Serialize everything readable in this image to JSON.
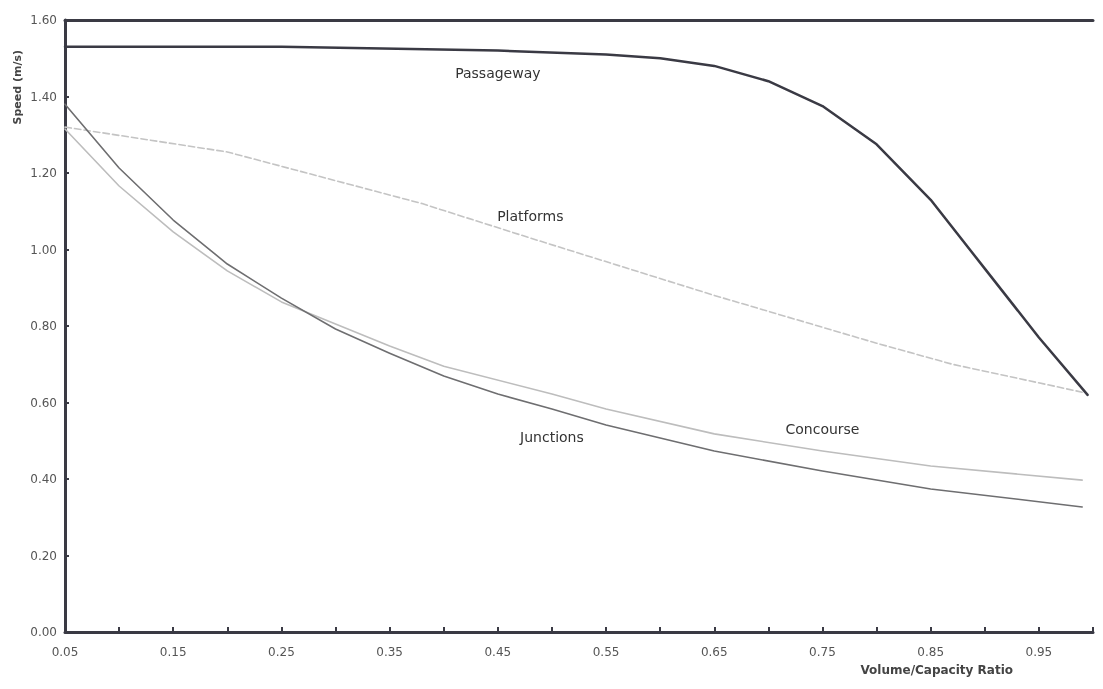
{
  "chart_data": {
    "type": "line",
    "xlabel": "Volume/Capacity Ratio",
    "ylabel": "Speed (m/s)",
    "xlim": [
      0.05,
      1.0
    ],
    "xticks": [
      0.05,
      {
        "value": 0.1,
        "label": null
      },
      0.15,
      {
        "value": 0.2,
        "label": null
      },
      0.25,
      {
        "value": 0.3,
        "label": null
      },
      0.35,
      {
        "value": 0.4,
        "label": null
      },
      0.45,
      {
        "value": 0.5,
        "label": null
      },
      0.55,
      {
        "value": 0.6,
        "label": null
      },
      0.65,
      {
        "value": 0.7,
        "label": null
      },
      0.75,
      {
        "value": 0.8,
        "label": null
      },
      0.85,
      {
        "value": 0.9,
        "label": null
      },
      0.95,
      {
        "value": 1.0,
        "label": null
      }
    ],
    "ylim": [
      0,
      1.6
    ],
    "yticks": [
      {
        "value": 0,
        "label": "0.00"
      },
      {
        "value": 0.2,
        "label": "0.20"
      },
      {
        "value": 0.4,
        "label": "0.40"
      },
      {
        "value": 0.6,
        "label": "0.60"
      },
      {
        "value": 0.8,
        "label": "0.80"
      },
      {
        "value": 1.0,
        "label": "1.00"
      },
      {
        "value": 1.2,
        "label": "1.20"
      },
      {
        "value": 1.4,
        "label": "1.40"
      },
      {
        "value": 1.6,
        "label": "1.60"
      }
    ],
    "grid": false,
    "legend": false,
    "marker": "none",
    "series": [
      {
        "name": "Passageway",
        "color": "#3a3a44",
        "line_style": "solid",
        "x": [
          0.05,
          0.25,
          0.45,
          0.55,
          0.6,
          0.65,
          0.7,
          0.75,
          0.8,
          0.85,
          0.9,
          0.95,
          0.995
        ],
        "values": [
          1.53,
          1.53,
          1.52,
          1.51,
          1.5,
          1.48,
          1.44,
          1.375,
          1.275,
          1.13,
          0.95,
          0.77,
          0.62
        ]
      },
      {
        "name": "Platforms",
        "color": "#c4c4c4",
        "line_style": "dashed",
        "x": [
          0.05,
          0.2,
          0.3,
          0.38,
          0.48,
          0.65,
          0.8,
          0.87,
          0.99
        ],
        "values": [
          1.32,
          1.255,
          1.18,
          1.12,
          1.03,
          0.88,
          0.755,
          0.7,
          0.627
        ]
      },
      {
        "name": "Concourse",
        "color": "#bdbdbd",
        "line_style": "solid",
        "x": [
          0.05,
          0.1,
          0.15,
          0.2,
          0.25,
          0.35,
          0.4,
          0.5,
          0.55,
          0.65,
          0.75,
          0.85,
          0.99
        ],
        "values": [
          1.315,
          1.166,
          1.046,
          0.944,
          0.863,
          0.748,
          0.695,
          0.622,
          0.583,
          0.518,
          0.473,
          0.434,
          0.397
        ]
      },
      {
        "name": "Junctions",
        "color": "#6e6e70",
        "line_style": "solid",
        "x": [
          0.05,
          0.1,
          0.15,
          0.2,
          0.25,
          0.3,
          0.35,
          0.4,
          0.45,
          0.5,
          0.55,
          0.65,
          0.75,
          0.85,
          0.99
        ],
        "values": [
          1.38,
          1.213,
          1.077,
          0.962,
          0.873,
          0.792,
          0.729,
          0.669,
          0.622,
          0.583,
          0.541,
          0.473,
          0.421,
          0.374,
          0.327
        ]
      }
    ]
  }
}
